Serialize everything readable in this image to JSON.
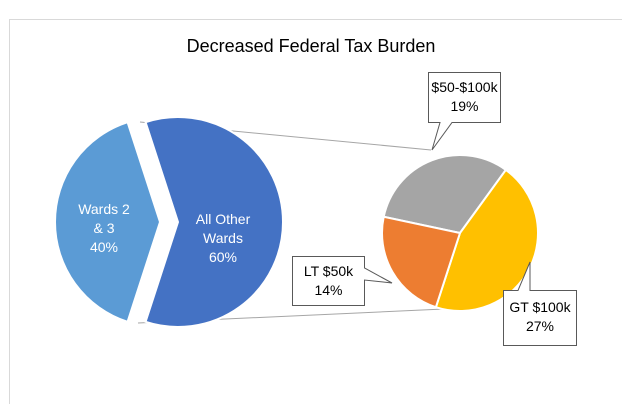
{
  "chart_data": {
    "type": "pie-of-pie",
    "title": "Decreased Federal Tax Burden",
    "categories": [
      "Wards 2 & 3",
      "All Other Wards"
    ],
    "values": [
      40,
      60
    ],
    "value_labels": [
      "40%",
      "60%"
    ],
    "colors": [
      "#5b9bd5",
      "#4472c4"
    ],
    "secondary": {
      "categories": [
        "$50-$100k",
        "GT $100k",
        "LT $50k"
      ],
      "values": [
        19,
        27,
        14
      ],
      "value_labels": [
        "19%",
        "27%",
        "14%"
      ],
      "colors": [
        "#a5a5a5",
        "#ffc000",
        "#ed7d31"
      ]
    }
  }
}
